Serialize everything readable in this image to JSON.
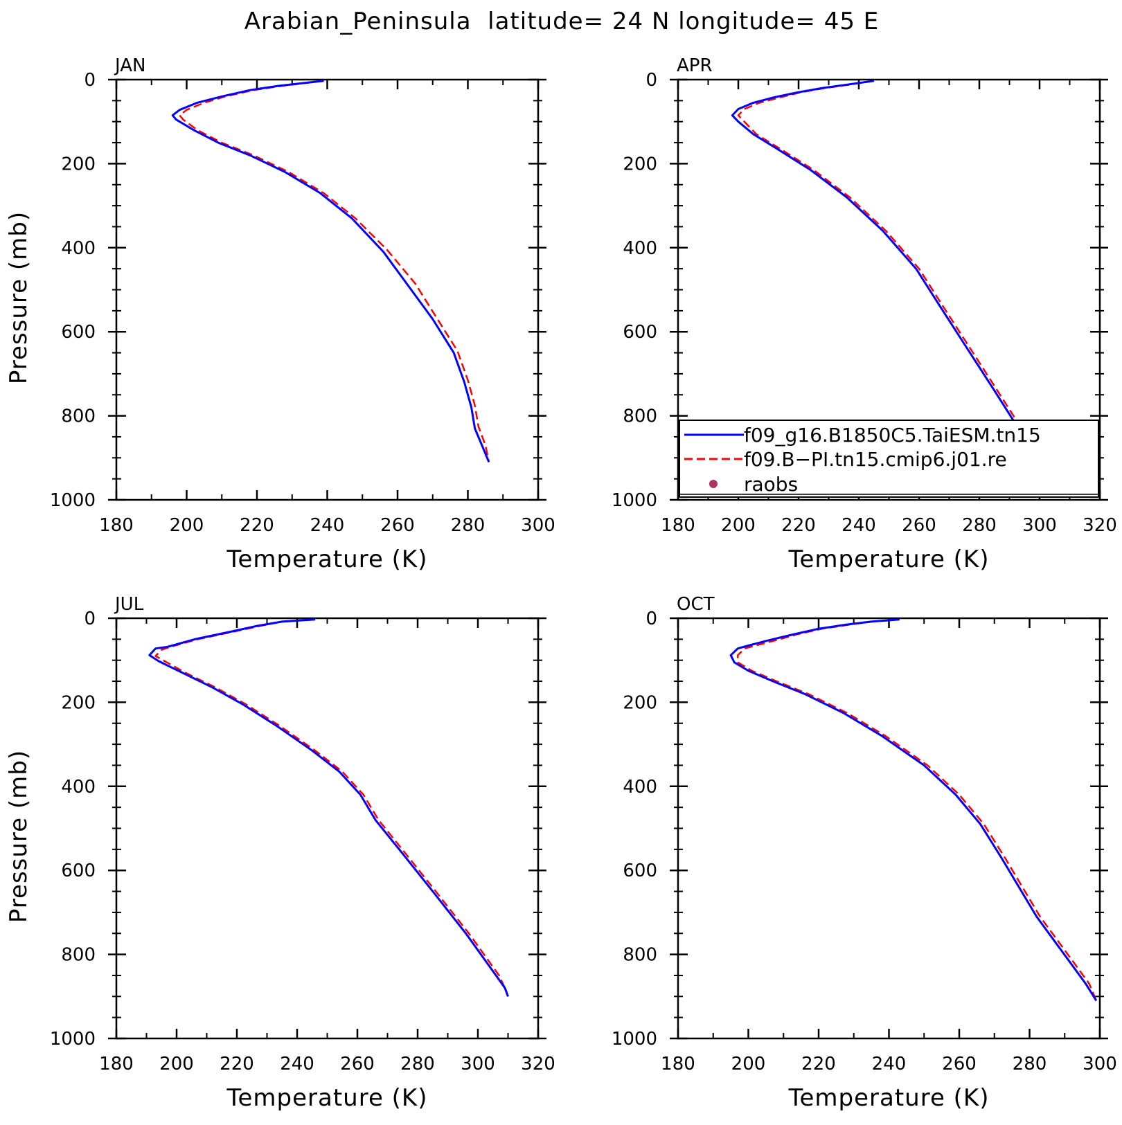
{
  "figure": {
    "title": "Arabian_Peninsula  latitude= 24 N longitude= 45 E"
  },
  "legend": {
    "entries": [
      {
        "label": "f09_g16.B1850C5.TaiESM.tn15",
        "color": "#0000ff",
        "style": "solid"
      },
      {
        "label": "f09.B−PI.tn15.cmip6.j01.re",
        "color": "#ff0000",
        "style": "dashed"
      },
      {
        "label": "raobs",
        "color": "#b03060",
        "style": "dot"
      }
    ],
    "placement": "lower-right of APR panel"
  },
  "chart_data": [
    {
      "type": "line",
      "panel": "JAN",
      "xlabel": "Temperature (K)",
      "ylabel": "Pressure (mb)",
      "xlim": [
        180,
        300
      ],
      "xticks": [
        180,
        200,
        220,
        240,
        260,
        280,
        300
      ],
      "ylim": [
        0,
        1000
      ],
      "yticks": [
        0,
        200,
        400,
        600,
        800,
        1000
      ],
      "y_inverted": true,
      "grid": false,
      "series": [
        {
          "name": "f09_g16.B1850C5.TaiESM.tn15",
          "color": "#0000ff",
          "points": [
            [
              239,
              3
            ],
            [
              226,
              15
            ],
            [
              218,
              25
            ],
            [
              210,
              40
            ],
            [
              203,
              55
            ],
            [
              198,
              72
            ],
            [
              196,
              85
            ],
            [
              197,
              95
            ],
            [
              202,
              120
            ],
            [
              209,
              150
            ],
            [
              218,
              180
            ],
            [
              228,
              220
            ],
            [
              238,
              270
            ],
            [
              247,
              330
            ],
            [
              256,
              410
            ],
            [
              263,
              490
            ],
            [
              270,
              570
            ],
            [
              276,
              650
            ],
            [
              279,
              720
            ],
            [
              281,
              780
            ],
            [
              282,
              830
            ],
            [
              284,
              870
            ],
            [
              286,
              910
            ]
          ]
        },
        {
          "name": "f09.B−PI.tn15.cmip6.j01.re",
          "color": "#ff0000",
          "points": [
            [
              239,
              3
            ],
            [
              227,
              15
            ],
            [
              219,
              25
            ],
            [
              211,
              40
            ],
            [
              205,
              55
            ],
            [
              200,
              72
            ],
            [
              198,
              85
            ],
            [
              199,
              95
            ],
            [
              203,
              120
            ],
            [
              210,
              150
            ],
            [
              219,
              180
            ],
            [
              229,
              220
            ],
            [
              239,
              270
            ],
            [
              248,
              330
            ],
            [
              257,
              405
            ],
            [
              265,
              485
            ],
            [
              271,
              565
            ],
            [
              277,
              645
            ],
            [
              280,
              715
            ],
            [
              282,
              775
            ],
            [
              283,
              825
            ],
            [
              285,
              870
            ],
            [
              286,
              910
            ]
          ]
        }
      ]
    },
    {
      "type": "line",
      "panel": "APR",
      "xlabel": "Temperature (K)",
      "ylabel": "",
      "xlim": [
        180,
        320
      ],
      "xticks": [
        180,
        200,
        220,
        240,
        260,
        280,
        300,
        320
      ],
      "ylim": [
        0,
        1000
      ],
      "yticks": [
        0,
        200,
        400,
        600,
        800,
        1000
      ],
      "y_inverted": true,
      "grid": false,
      "series": [
        {
          "name": "f09_g16.B1850C5.TaiESM.tn15",
          "color": "#0000ff",
          "points": [
            [
              245,
              3
            ],
            [
              236,
              12
            ],
            [
              228,
              20
            ],
            [
              220,
              30
            ],
            [
              212,
              42
            ],
            [
              205,
              55
            ],
            [
              200,
              70
            ],
            [
              198,
              85
            ],
            [
              200,
              100
            ],
            [
              205,
              130
            ],
            [
              213,
              165
            ],
            [
              224,
              215
            ],
            [
              236,
              280
            ],
            [
              248,
              360
            ],
            [
              259,
              450
            ],
            [
              267,
              540
            ],
            [
              276,
              640
            ],
            [
              285,
              740
            ],
            [
              293,
              830
            ],
            [
              298,
              880
            ],
            [
              301,
              905
            ]
          ]
        },
        {
          "name": "f09.B−PI.tn15.cmip6.j01.re",
          "color": "#ff0000",
          "points": [
            [
              245,
              3
            ],
            [
              237,
              12
            ],
            [
              229,
              20
            ],
            [
              221,
              30
            ],
            [
              214,
              42
            ],
            [
              207,
              55
            ],
            [
              202,
              70
            ],
            [
              200,
              85
            ],
            [
              202,
              100
            ],
            [
              206,
              130
            ],
            [
              214,
              165
            ],
            [
              225,
              215
            ],
            [
              237,
              280
            ],
            [
              249,
              360
            ],
            [
              260,
              450
            ],
            [
              268,
              540
            ],
            [
              277,
              640
            ],
            [
              286,
              740
            ],
            [
              294,
              830
            ],
            [
              299,
              880
            ],
            [
              301,
              905
            ]
          ]
        }
      ]
    },
    {
      "type": "line",
      "panel": "JUL",
      "xlabel": "Temperature (K)",
      "ylabel": "Pressure (mb)",
      "xlim": [
        180,
        320
      ],
      "xticks": [
        180,
        200,
        220,
        240,
        260,
        280,
        300,
        320
      ],
      "ylim": [
        0,
        1000
      ],
      "yticks": [
        0,
        200,
        400,
        600,
        800,
        1000
      ],
      "y_inverted": true,
      "grid": false,
      "series": [
        {
          "name": "f09_g16.B1850C5.TaiESM.tn15",
          "color": "#0000ff",
          "points": [
            [
              246,
              3
            ],
            [
              235,
              8
            ],
            [
              227,
              18
            ],
            [
              218,
              32
            ],
            [
              206,
              50
            ],
            [
              197,
              68
            ],
            [
              193,
              72
            ],
            [
              191,
              88
            ],
            [
              194,
              102
            ],
            [
              202,
              130
            ],
            [
              212,
              165
            ],
            [
              222,
              205
            ],
            [
              233,
              255
            ],
            [
              245,
              315
            ],
            [
              254,
              365
            ],
            [
              261,
              420
            ],
            [
              266,
              480
            ],
            [
              275,
              560
            ],
            [
              285,
              650
            ],
            [
              296,
              750
            ],
            [
              306,
              850
            ],
            [
              309,
              880
            ],
            [
              310,
              900
            ]
          ]
        },
        {
          "name": "f09.B−PI.tn15.cmip6.j01.re",
          "color": "#ff0000",
          "points": [
            [
              246,
              3
            ],
            [
              235,
              8
            ],
            [
              228,
              18
            ],
            [
              219,
              32
            ],
            [
              207,
              50
            ],
            [
              198,
              68
            ],
            [
              195,
              75
            ],
            [
              193,
              90
            ],
            [
              196,
              102
            ],
            [
              203,
              130
            ],
            [
              213,
              165
            ],
            [
              223,
              205
            ],
            [
              234,
              255
            ],
            [
              246,
              315
            ],
            [
              255,
              365
            ],
            [
              262,
              420
            ],
            [
              267,
              480
            ],
            [
              276,
              560
            ],
            [
              286,
              650
            ],
            [
              297,
              750
            ],
            [
              307,
              850
            ],
            [
              309,
              880
            ],
            [
              310,
              900
            ]
          ]
        }
      ]
    },
    {
      "type": "line",
      "panel": "OCT",
      "xlabel": "Temperature (K)",
      "ylabel": "",
      "xlim": [
        180,
        300
      ],
      "xticks": [
        180,
        200,
        220,
        240,
        260,
        280,
        300
      ],
      "ylim": [
        0,
        1000
      ],
      "yticks": [
        0,
        200,
        400,
        600,
        800,
        1000
      ],
      "y_inverted": true,
      "grid": false,
      "series": [
        {
          "name": "f09_g16.B1850C5.TaiESM.tn15",
          "color": "#0000ff",
          "points": [
            [
              243,
              3
            ],
            [
              235,
              8
            ],
            [
              228,
              15
            ],
            [
              220,
              25
            ],
            [
              213,
              38
            ],
            [
              206,
              52
            ],
            [
              200,
              65
            ],
            [
              197,
              72
            ],
            [
              195,
              88
            ],
            [
              196,
              105
            ],
            [
              200,
              125
            ],
            [
              207,
              150
            ],
            [
              216,
              180
            ],
            [
              227,
              225
            ],
            [
              238,
              280
            ],
            [
              250,
              350
            ],
            [
              259,
              420
            ],
            [
              266,
              490
            ],
            [
              272,
              570
            ],
            [
              277,
              640
            ],
            [
              282,
              710
            ],
            [
              289,
              790
            ],
            [
              296,
              870
            ],
            [
              299,
              910
            ]
          ]
        },
        {
          "name": "f09.B−PI.tn15.cmip6.j01.re",
          "color": "#ff0000",
          "points": [
            [
              243,
              3
            ],
            [
              235,
              8
            ],
            [
              229,
              15
            ],
            [
              221,
              25
            ],
            [
              214,
              38
            ],
            [
              208,
              52
            ],
            [
              202,
              65
            ],
            [
              199,
              72
            ],
            [
              197,
              88
            ],
            [
              197,
              105
            ],
            [
              201,
              125
            ],
            [
              208,
              150
            ],
            [
              217,
              180
            ],
            [
              228,
              225
            ],
            [
              239,
              280
            ],
            [
              251,
              350
            ],
            [
              260,
              420
            ],
            [
              267,
              490
            ],
            [
              273,
              570
            ],
            [
              278,
              640
            ],
            [
              283,
              710
            ],
            [
              290,
              790
            ],
            [
              297,
              870
            ],
            [
              299,
              910
            ]
          ]
        }
      ]
    }
  ]
}
